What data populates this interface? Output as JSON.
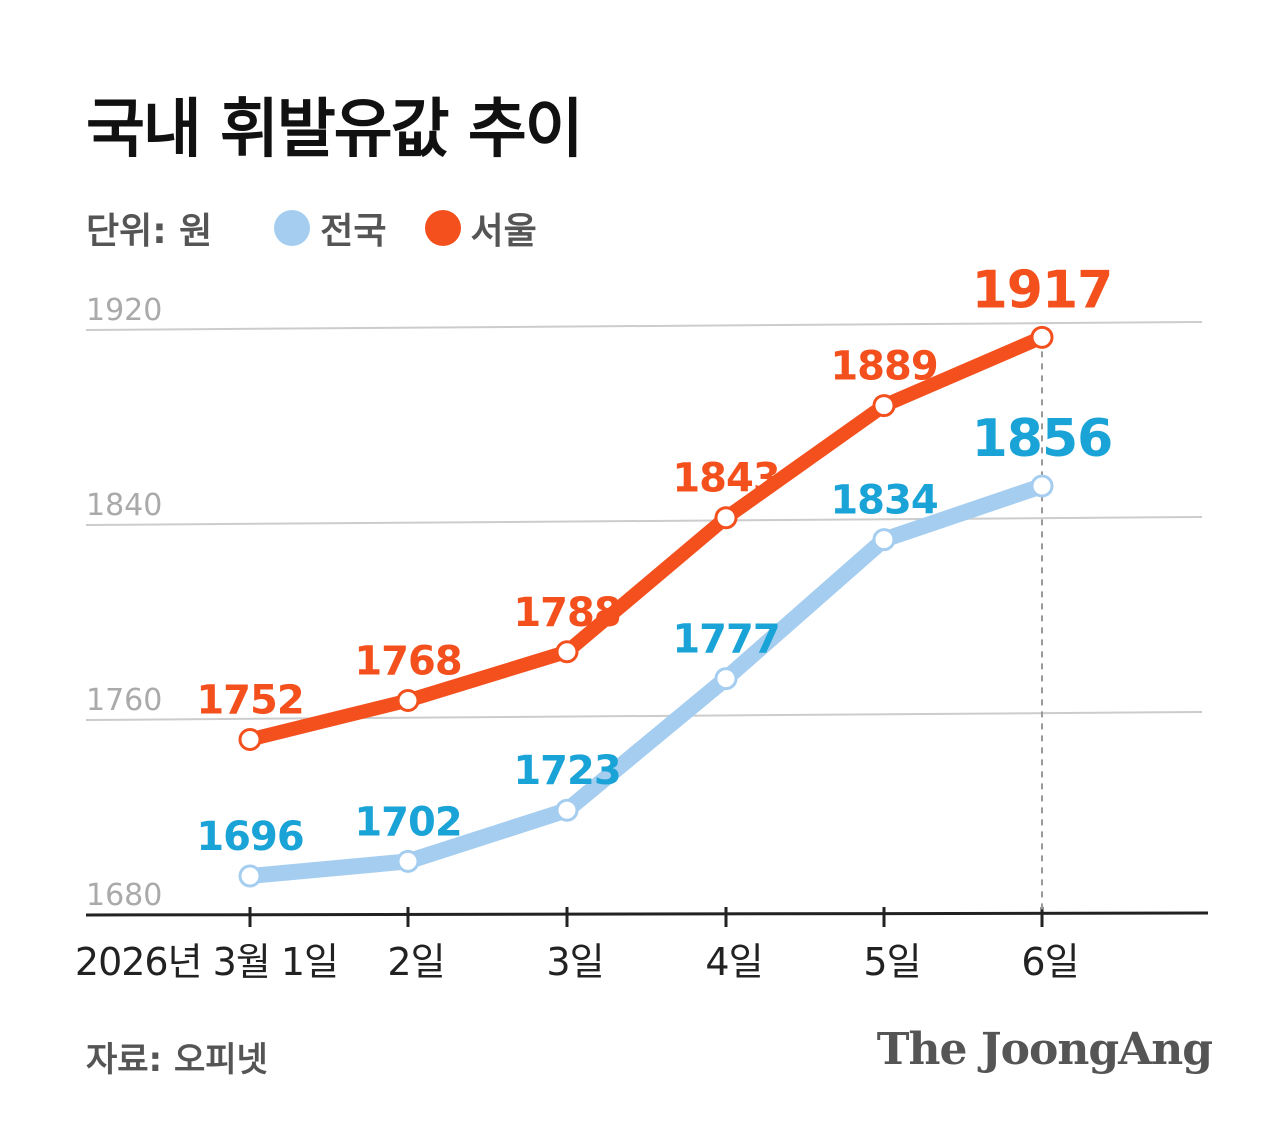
{
  "title": "국내 휘발유값 추이",
  "legend": {
    "unit": "단위: 원",
    "national": "전국",
    "seoul": "서울"
  },
  "colors": {
    "national": "#A4CDF0",
    "national_label": "#1AA3D6",
    "seoul": "#F4501E",
    "grid": "#CCCCCC",
    "axis": "#222222"
  },
  "source": "자료: 오피넷",
  "brand": "The JoongAng",
  "chart_data": {
    "type": "line",
    "title": "국내 휘발유값 추이",
    "ylabel": "원",
    "ylim": [
      1680,
      1920
    ],
    "yticks": [
      1680,
      1760,
      1840,
      1920
    ],
    "categories": [
      "2026년 3월 1일",
      "2일",
      "3일",
      "4일",
      "5일",
      "6일"
    ],
    "series": [
      {
        "name": "서울",
        "values": [
          1752,
          1768,
          1788,
          1843,
          1889,
          1917
        ]
      },
      {
        "name": "전국",
        "values": [
          1696,
          1702,
          1723,
          1777,
          1834,
          1856
        ]
      }
    ]
  }
}
